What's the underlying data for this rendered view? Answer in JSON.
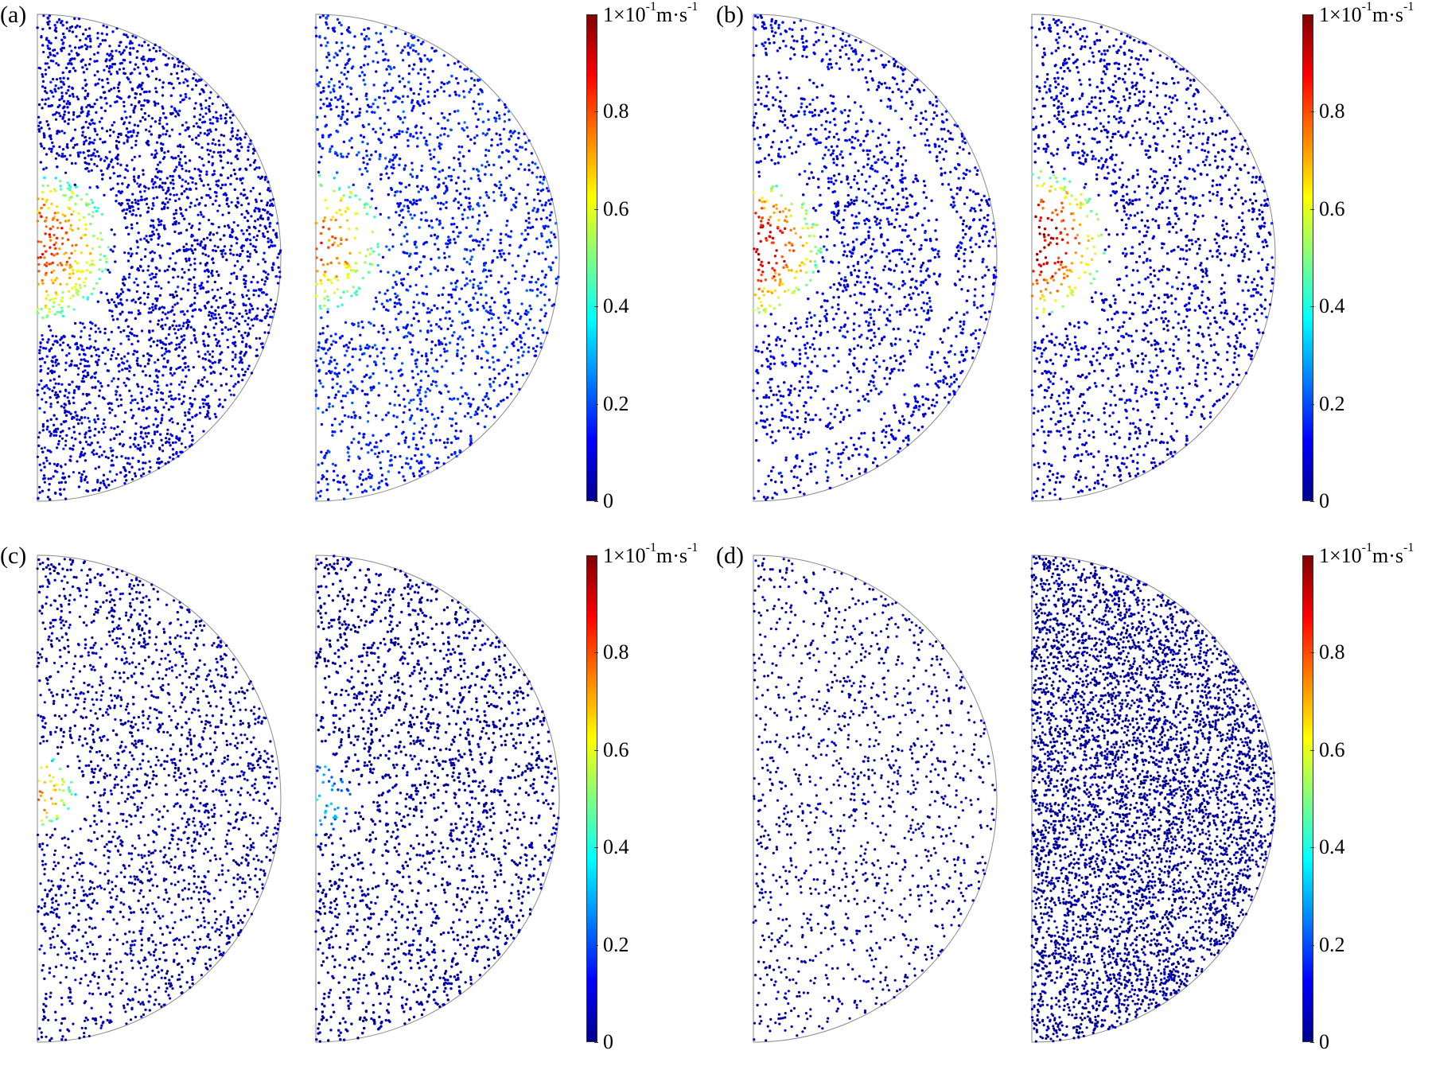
{
  "colormap": [
    "#00008f",
    "#0000ff",
    "#0080ff",
    "#00ffff",
    "#80ff80",
    "#ffff00",
    "#ff8000",
    "#ff0000",
    "#800000"
  ],
  "colorbar": {
    "unit_base": "1×10",
    "unit_exp1": "-1",
    "unit_mid": "m·s",
    "unit_exp2": "-1",
    "ticks": [
      "0",
      "0.2",
      "0.4",
      "0.6",
      "0.8"
    ],
    "tick_values": [
      0,
      0.2,
      0.4,
      0.6,
      0.8
    ],
    "max": 1
  },
  "chart_data": [
    {
      "type": "scatter",
      "panel": "(a)",
      "subplots": [
        {
          "hot_spot": {
            "value": 0.85,
            "radius": 0.3,
            "cy": 0.48
          },
          "density": 1.0,
          "ring_gap": null,
          "background_value": 0.08
        },
        {
          "hot_spot": {
            "value": 0.8,
            "radius": 0.28,
            "cy": 0.47
          },
          "density": 1.0,
          "ring_gap": null,
          "background_value": 0.15
        }
      ]
    },
    {
      "type": "scatter",
      "panel": "(b)",
      "subplots": [
        {
          "hot_spot": {
            "value": 0.92,
            "radius": 0.28,
            "cy": 0.48
          },
          "density": 1.0,
          "ring_gap": 0.8,
          "background_value": 0.1
        },
        {
          "hot_spot": {
            "value": 0.95,
            "radius": 0.3,
            "cy": 0.47
          },
          "density": 1.0,
          "ring_gap": null,
          "background_value": 0.08
        }
      ]
    },
    {
      "type": "scatter",
      "panel": "(c)",
      "subplots": [
        {
          "hot_spot": {
            "value": 0.75,
            "radius": 0.16,
            "cy": 0.49
          },
          "density": 0.6,
          "ring_gap": null,
          "background_value": 0.03
        },
        {
          "hot_spot": {
            "value": 0.35,
            "radius": 0.15,
            "cy": 0.5
          },
          "density": 1.0,
          "ring_gap": null,
          "background_value": 0.02
        }
      ]
    },
    {
      "type": "scatter",
      "panel": "(d)",
      "subplots": [
        {
          "hot_spot": null,
          "density": 0.25,
          "ring_gap": null,
          "background_value": 0.02
        },
        {
          "hot_spot": null,
          "density": 1.0,
          "ring_gap": null,
          "background_value": 0.01
        }
      ]
    }
  ]
}
